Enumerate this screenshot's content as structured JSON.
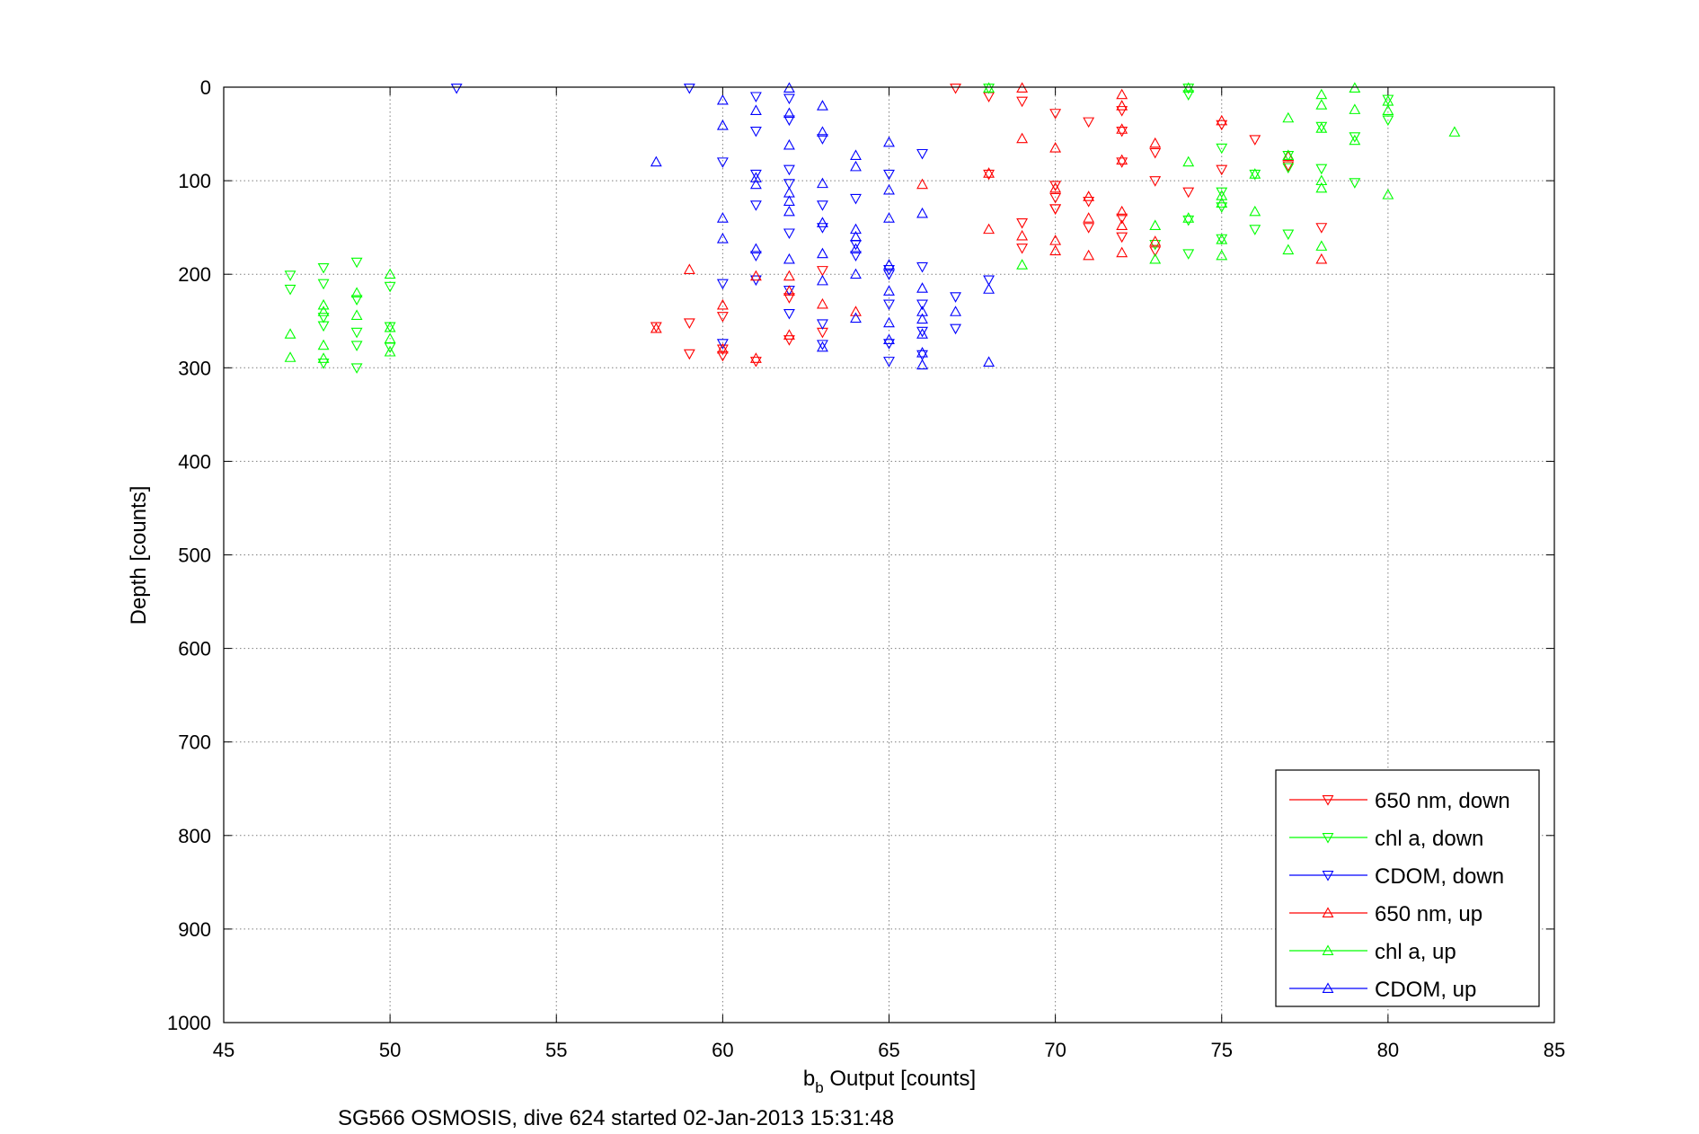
{
  "chart_data": {
    "type": "scatter",
    "title": "",
    "xlabel_main": "b",
    "xlabel_sub": "b",
    "xlabel_rest": " Output [counts]",
    "ylabel": "Depth [counts]",
    "caption": "SG566 OSMOSIS, dive 624 started 02-Jan-2013 15:31:48",
    "xlim": [
      45,
      85
    ],
    "ylim": [
      0,
      1000
    ],
    "y_reversed": true,
    "grid": true,
    "legend_position": "bottom-right",
    "xticks": [
      "45",
      "50",
      "55",
      "60",
      "65",
      "70",
      "75",
      "80",
      "85"
    ],
    "yticks": [
      "0",
      "100",
      "200",
      "300",
      "400",
      "500",
      "600",
      "700",
      "800",
      "900",
      "1000"
    ],
    "series": [
      {
        "name": "650 nm, down",
        "color": "#ff0000",
        "marker": "triangle-down",
        "points": [
          [
            67,
            1
          ],
          [
            68,
            10
          ],
          [
            69,
            15
          ],
          [
            70,
            28
          ],
          [
            71,
            37
          ],
          [
            72,
            25
          ],
          [
            72,
            47
          ],
          [
            73,
            70
          ],
          [
            75,
            40
          ],
          [
            76,
            56
          ],
          [
            68,
            93
          ],
          [
            70,
            105
          ],
          [
            70,
            118
          ],
          [
            70,
            130
          ],
          [
            71,
            122
          ],
          [
            71,
            150
          ],
          [
            72,
            80
          ],
          [
            72,
            140
          ],
          [
            72,
            160
          ],
          [
            73,
            175
          ],
          [
            73,
            100
          ],
          [
            75,
            88
          ],
          [
            69,
            145
          ],
          [
            69,
            172
          ],
          [
            70,
            130
          ],
          [
            59,
            285
          ],
          [
            60,
            280
          ],
          [
            60,
            287
          ],
          [
            61,
            293
          ],
          [
            62,
            225
          ],
          [
            62,
            270
          ],
          [
            63,
            196
          ],
          [
            63,
            262
          ],
          [
            58,
            256
          ],
          [
            59,
            252
          ],
          [
            60,
            245
          ],
          [
            74,
            112
          ],
          [
            77,
            84
          ],
          [
            78,
            150
          ]
        ]
      },
      {
        "name": "chl a, down",
        "color": "#00ff00",
        "marker": "triangle-down",
        "points": [
          [
            47,
            201
          ],
          [
            47,
            216
          ],
          [
            48,
            193
          ],
          [
            48,
            210
          ],
          [
            48,
            246
          ],
          [
            48,
            255
          ],
          [
            48,
            295
          ],
          [
            49,
            187
          ],
          [
            49,
            227
          ],
          [
            49,
            262
          ],
          [
            49,
            276
          ],
          [
            49,
            300
          ],
          [
            50,
            213
          ],
          [
            50,
            256
          ],
          [
            50,
            278
          ],
          [
            68,
            1
          ],
          [
            74,
            1
          ],
          [
            74,
            8
          ],
          [
            75,
            65
          ],
          [
            75,
            112
          ],
          [
            75,
            128
          ],
          [
            75,
            162
          ],
          [
            76,
            93
          ],
          [
            76,
            152
          ],
          [
            77,
            73
          ],
          [
            77,
            86
          ],
          [
            77,
            157
          ],
          [
            78,
            42
          ],
          [
            78,
            87
          ],
          [
            79,
            53
          ],
          [
            79,
            102
          ],
          [
            80,
            35
          ],
          [
            80,
            13
          ],
          [
            74,
            178
          ],
          [
            73,
            168
          ],
          [
            74,
            142
          ]
        ]
      },
      {
        "name": "CDOM, down",
        "color": "#0000ff",
        "marker": "triangle-down",
        "points": [
          [
            52,
            1
          ],
          [
            59,
            1
          ],
          [
            60,
            80
          ],
          [
            61,
            10
          ],
          [
            61,
            47
          ],
          [
            61,
            93
          ],
          [
            61,
            126
          ],
          [
            61,
            180
          ],
          [
            62,
            12
          ],
          [
            62,
            35
          ],
          [
            62,
            88
          ],
          [
            62,
            103
          ],
          [
            62,
            156
          ],
          [
            62,
            217
          ],
          [
            62,
            242
          ],
          [
            63,
            55
          ],
          [
            63,
            126
          ],
          [
            63,
            150
          ],
          [
            63,
            253
          ],
          [
            64,
            119
          ],
          [
            64,
            168
          ],
          [
            64,
            180
          ],
          [
            65,
            93
          ],
          [
            65,
            232
          ],
          [
            65,
            274
          ],
          [
            65,
            293
          ],
          [
            66,
            71
          ],
          [
            66,
            192
          ],
          [
            66,
            232
          ],
          [
            66,
            261
          ],
          [
            66,
            286
          ],
          [
            67,
            224
          ],
          [
            67,
            258
          ],
          [
            68,
            206
          ],
          [
            60,
            210
          ],
          [
            60,
            274
          ],
          [
            61,
            206
          ],
          [
            63,
            275
          ],
          [
            65,
            195
          ],
          [
            65,
            200
          ]
        ]
      },
      {
        "name": "650 nm, up",
        "color": "#ff0000",
        "marker": "triangle-up",
        "points": [
          [
            69,
            1
          ],
          [
            69,
            55
          ],
          [
            70,
            65
          ],
          [
            72,
            8
          ],
          [
            72,
            20
          ],
          [
            72,
            45
          ],
          [
            72,
            78
          ],
          [
            73,
            60
          ],
          [
            75,
            36
          ],
          [
            66,
            104
          ],
          [
            68,
            152
          ],
          [
            69,
            159
          ],
          [
            70,
            108
          ],
          [
            70,
            164
          ],
          [
            70,
            175
          ],
          [
            71,
            117
          ],
          [
            71,
            140
          ],
          [
            72,
            133
          ],
          [
            72,
            148
          ],
          [
            72,
            177
          ],
          [
            73,
            165
          ],
          [
            59,
            195
          ],
          [
            60,
            233
          ],
          [
            60,
            280
          ],
          [
            61,
            290
          ],
          [
            61,
            202
          ],
          [
            62,
            202
          ],
          [
            62,
            218
          ],
          [
            62,
            265
          ],
          [
            63,
            232
          ],
          [
            64,
            240
          ],
          [
            58,
            258
          ],
          [
            68,
            92
          ],
          [
            78,
            184
          ],
          [
            71,
            180
          ],
          [
            77,
            74
          ]
        ]
      },
      {
        "name": "chl a, up",
        "color": "#00ff00",
        "marker": "triangle-up",
        "points": [
          [
            47,
            264
          ],
          [
            47,
            289
          ],
          [
            48,
            233
          ],
          [
            48,
            240
          ],
          [
            48,
            276
          ],
          [
            48,
            290
          ],
          [
            49,
            220
          ],
          [
            49,
            244
          ],
          [
            50,
            200
          ],
          [
            50,
            257
          ],
          [
            50,
            269
          ],
          [
            50,
            283
          ],
          [
            68,
            1
          ],
          [
            74,
            1
          ],
          [
            74,
            80
          ],
          [
            75,
            116
          ],
          [
            75,
            124
          ],
          [
            75,
            163
          ],
          [
            75,
            180
          ],
          [
            76,
            93
          ],
          [
            76,
            133
          ],
          [
            77,
            33
          ],
          [
            77,
            73
          ],
          [
            77,
            174
          ],
          [
            78,
            8
          ],
          [
            78,
            19
          ],
          [
            78,
            44
          ],
          [
            78,
            100
          ],
          [
            78,
            108
          ],
          [
            78,
            170
          ],
          [
            79,
            1
          ],
          [
            79,
            24
          ],
          [
            79,
            57
          ],
          [
            80,
            15
          ],
          [
            80,
            115
          ],
          [
            80,
            25
          ],
          [
            82,
            48
          ],
          [
            69,
            190
          ],
          [
            73,
            148
          ],
          [
            73,
            184
          ],
          [
            74,
            140
          ]
        ]
      },
      {
        "name": "CDOM, up",
        "color": "#0000ff",
        "marker": "triangle-up",
        "points": [
          [
            58,
            80
          ],
          [
            60,
            14
          ],
          [
            60,
            41
          ],
          [
            60,
            140
          ],
          [
            60,
            162
          ],
          [
            61,
            25
          ],
          [
            61,
            97
          ],
          [
            61,
            173
          ],
          [
            62,
            1
          ],
          [
            62,
            28
          ],
          [
            62,
            62
          ],
          [
            62,
            113
          ],
          [
            62,
            133
          ],
          [
            62,
            184
          ],
          [
            63,
            20
          ],
          [
            63,
            48
          ],
          [
            63,
            103
          ],
          [
            63,
            145
          ],
          [
            63,
            178
          ],
          [
            63,
            207
          ],
          [
            63,
            278
          ],
          [
            64,
            73
          ],
          [
            64,
            85
          ],
          [
            64,
            152
          ],
          [
            64,
            160
          ],
          [
            64,
            200
          ],
          [
            64,
            247
          ],
          [
            65,
            59
          ],
          [
            65,
            110
          ],
          [
            65,
            140
          ],
          [
            65,
            190
          ],
          [
            65,
            218
          ],
          [
            65,
            252
          ],
          [
            65,
            270
          ],
          [
            66,
            135
          ],
          [
            66,
            215
          ],
          [
            66,
            240
          ],
          [
            66,
            248
          ],
          [
            66,
            264
          ],
          [
            66,
            284
          ],
          [
            66,
            297
          ],
          [
            67,
            240
          ],
          [
            68,
            216
          ],
          [
            68,
            294
          ],
          [
            61,
            104
          ],
          [
            62,
            122
          ],
          [
            64,
            173
          ]
        ]
      }
    ]
  }
}
